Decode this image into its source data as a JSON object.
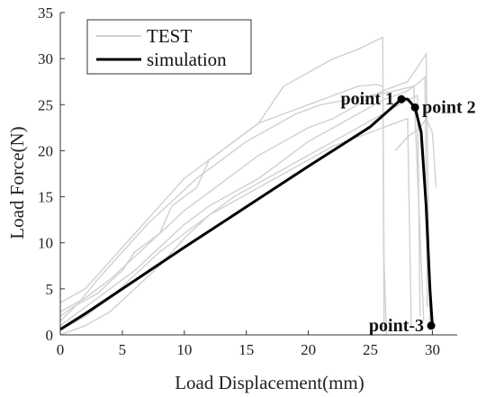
{
  "chart_data": {
    "type": "line",
    "xlabel": "Load Displacement(mm)",
    "ylabel": "Load Force(N)",
    "xlim": [
      0,
      32
    ],
    "ylim": [
      0,
      35
    ],
    "xticks": [
      0,
      5,
      10,
      15,
      20,
      25,
      30
    ],
    "yticks": [
      0,
      5,
      10,
      15,
      20,
      25,
      30,
      35
    ],
    "grid": false,
    "legend": {
      "placement": "top-left",
      "entries": [
        "TEST",
        "simulation"
      ]
    },
    "colors": {
      "test": "#d0d0d0",
      "simulation": "#000000",
      "axis": "#333333"
    },
    "series": [
      {
        "name": "simulation",
        "x": [
          0,
          2,
          5,
          10,
          15,
          20,
          25,
          27.5,
          28.0,
          28.6,
          29.1,
          29.5,
          29.8,
          30.0
        ],
        "y": [
          0.6,
          2.3,
          5.0,
          9.5,
          13.9,
          18.3,
          22.6,
          25.6,
          25.6,
          24.7,
          22.0,
          14.0,
          5.0,
          1.0
        ]
      },
      {
        "name": "TEST",
        "curves": [
          {
            "x": [
              0,
              1,
              3,
              5,
              6,
              8,
              9,
              11,
              12,
              14,
              16,
              18,
              20,
              22,
              24,
              25.5,
              26.0,
              26.1,
              26.3
            ],
            "y": [
              2.0,
              3.0,
              4.5,
              7.0,
              9.0,
              11.0,
              14.0,
              16.0,
              19.0,
              21.0,
              23.0,
              24.0,
              25.0,
              26.0,
              27.0,
              27.2,
              27.0,
              8.0,
              0.0
            ]
          },
          {
            "x": [
              0,
              2,
              4,
              6,
              8,
              10,
              12,
              14,
              16,
              17,
              18,
              20,
              22,
              24,
              25.5,
              26.0,
              26.1
            ],
            "y": [
              3.5,
              5.0,
              8.0,
              11.0,
              14.0,
              17.0,
              19.0,
              21.0,
              23.0,
              25.0,
              27.0,
              28.5,
              30.0,
              31.0,
              32.0,
              32.3,
              0.5
            ]
          },
          {
            "x": [
              0,
              2,
              4,
              6,
              8,
              10,
              12,
              14,
              16,
              18,
              20,
              22,
              24,
              26,
              28,
              28.8,
              29.0
            ],
            "y": [
              0.5,
              2.0,
              4.0,
              6.5,
              9.0,
              11.0,
              13.0,
              15.0,
              16.5,
              18.0,
              19.5,
              21.0,
              22.5,
              24.0,
              25.5,
              26.0,
              2.0
            ]
          },
          {
            "x": [
              0,
              2,
              4,
              6,
              8,
              10,
              12,
              14,
              16,
              18,
              20,
              22,
              24,
              26,
              28,
              29,
              29.4,
              29.6
            ],
            "y": [
              1.0,
              3.0,
              5.0,
              7.0,
              9.5,
              12.0,
              14.0,
              15.5,
              17.0,
              19.0,
              21.0,
              22.5,
              24.0,
              25.5,
              26.5,
              27.5,
              28.0,
              3.0
            ]
          },
          {
            "x": [
              0,
              2,
              4,
              6,
              8,
              10,
              12,
              14,
              16,
              18,
              20,
              22,
              24,
              26,
              28,
              29.0,
              29.5,
              29.8
            ],
            "y": [
              2.5,
              4.0,
              6.0,
              8.5,
              11.0,
              13.5,
              15.5,
              17.5,
              19.5,
              21.0,
              22.5,
              23.5,
              25.0,
              26.5,
              27.5,
              29.5,
              30.5,
              1.0
            ]
          },
          {
            "x": [
              0,
              2,
              4,
              6,
              8,
              10,
              12,
              14,
              16,
              18,
              20,
              22,
              24,
              26,
              27,
              28,
              28.3
            ],
            "y": [
              0.0,
              1.0,
              2.5,
              5.0,
              7.5,
              10.5,
              13.0,
              14.5,
              16.0,
              17.5,
              19.0,
              20.5,
              21.5,
              22.5,
              23.0,
              23.5,
              1.0
            ]
          },
          {
            "x": [
              0,
              1.5,
              3,
              5,
              7,
              9,
              11,
              13,
              15,
              17,
              19,
              21,
              23,
              25,
              27,
              28.5,
              29.3
            ],
            "y": [
              1.5,
              3.5,
              6.0,
              9.0,
              12.0,
              14.5,
              17.0,
              19.0,
              21.0,
              22.5,
              24.0,
              25.0,
              25.5,
              26.0,
              26.5,
              27.0,
              1.5
            ]
          },
          {
            "x": [
              27,
              28,
              29,
              29.5,
              30,
              30.3
            ],
            "y": [
              20.0,
              21.5,
              22.5,
              23.5,
              22.0,
              16.0
            ]
          }
        ]
      }
    ],
    "annotations": [
      {
        "text": "point 1",
        "x": 27.5,
        "y": 25.6
      },
      {
        "text": "point 2",
        "x": 28.6,
        "y": 24.7
      },
      {
        "text": "point-3",
        "x": 29.9,
        "y": 1.0
      }
    ]
  }
}
